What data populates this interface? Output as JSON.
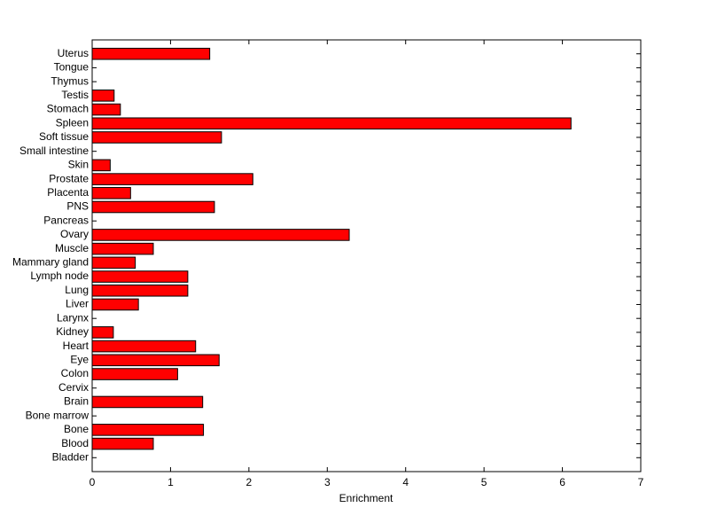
{
  "chart_data": {
    "type": "bar",
    "orientation": "horizontal",
    "xlabel": "Enrichment",
    "categories": [
      "Uterus",
      "Tongue",
      "Thymus",
      "Testis",
      "Stomach",
      "Spleen",
      "Soft tissue",
      "Small intestine",
      "Skin",
      "Prostate",
      "Placenta",
      "PNS",
      "Pancreas",
      "Ovary",
      "Muscle",
      "Mammary gland",
      "Lymph node",
      "Lung",
      "Liver",
      "Larynx",
      "Kidney",
      "Heart",
      "Eye",
      "Colon",
      "Cervix",
      "Brain",
      "Bone marrow",
      "Bone",
      "Blood",
      "Bladder"
    ],
    "values": [
      1.5,
      0,
      0,
      0.28,
      0.36,
      6.11,
      1.65,
      0,
      0.23,
      2.05,
      0.49,
      1.56,
      0,
      3.28,
      0.78,
      0.55,
      1.22,
      1.22,
      0.59,
      0,
      0.27,
      1.32,
      1.62,
      1.09,
      0,
      1.41,
      0,
      1.42,
      0.78,
      0
    ],
    "color": "#ff0000",
    "xlim": [
      0,
      7
    ],
    "xticks": [
      0,
      1,
      2,
      3,
      4,
      5,
      6,
      7
    ],
    "grid": false
  }
}
